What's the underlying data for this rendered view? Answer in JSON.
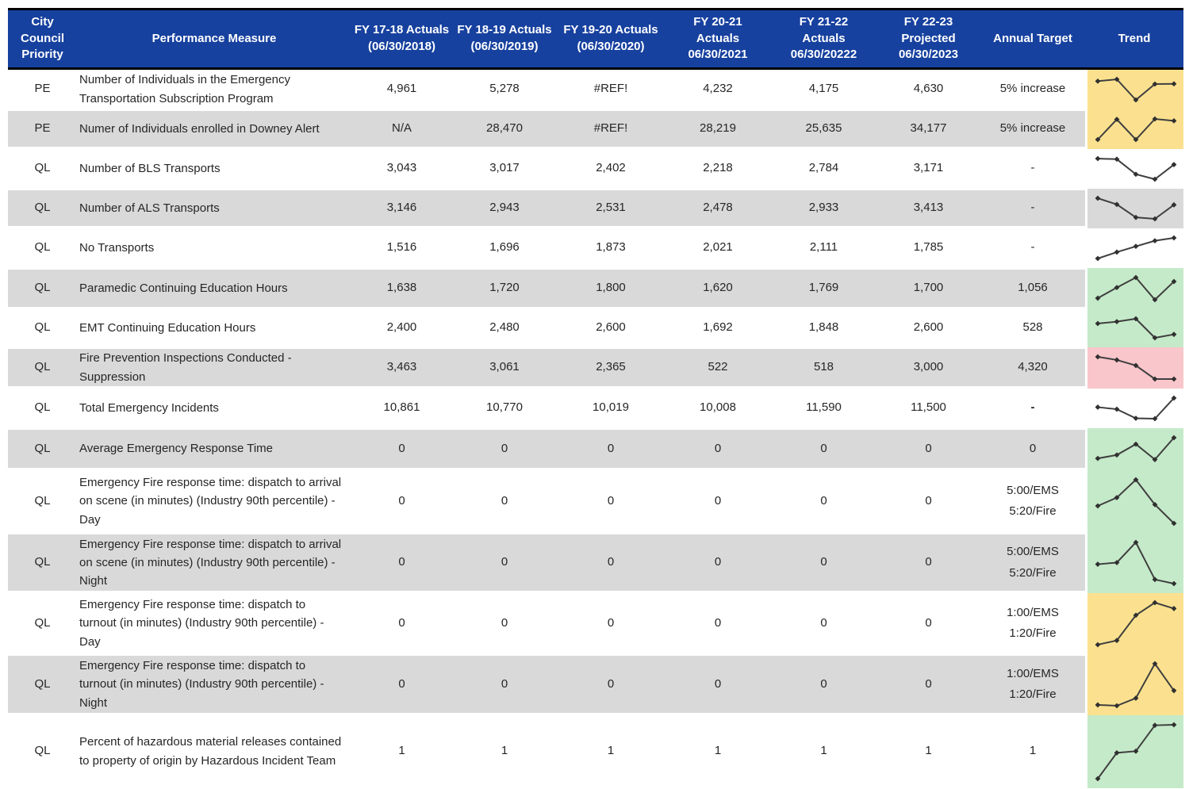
{
  "colors": {
    "header_bg": "#17419F",
    "header_text": "#FFFFFF",
    "row_alt": "#D9D9D9",
    "trend_yellow": "#FBE18F",
    "trend_green": "#C5EAC9",
    "trend_red": "#F9C6CB",
    "spark_line": "#3F3F3F",
    "spark_marker": "#303030",
    "border_black": "#000000"
  },
  "header": {
    "columns": [
      {
        "id": "priority",
        "label": "City\nCouncil\nPriority"
      },
      {
        "id": "measure",
        "label": "Performance Measure"
      },
      {
        "id": "fy1718",
        "label": "FY 17-18 Actuals\n(06/30/2018)"
      },
      {
        "id": "fy1819",
        "label": "FY 18-19 Actuals\n(06/30/2019)"
      },
      {
        "id": "fy1920",
        "label": "FY 19-20 Actuals\n(06/30/2020)"
      },
      {
        "id": "fy2021",
        "label": "FY 20-21\nActuals\n06/30/2021"
      },
      {
        "id": "fy2122",
        "label": "FY 21-22\nActuals\n06/30/20222"
      },
      {
        "id": "fy2223",
        "label": "FY 22-23\nProjected\n06/30/2023"
      },
      {
        "id": "target",
        "label": "Annual Target"
      },
      {
        "id": "trend",
        "label": "Trend"
      }
    ]
  },
  "rows": [
    {
      "priority": "PE",
      "measure": "Number of Individuals in the Emergency Transportation Subscription Program",
      "values": [
        "4,961",
        "5,278",
        "#REF!",
        "4,232",
        "4,175",
        "4,630"
      ],
      "target": "5% increase",
      "shade": "white",
      "trend": {
        "bg": "yellow",
        "points": [
          0.91,
          1,
          0,
          0.77,
          0.78
        ]
      }
    },
    {
      "priority": "PE",
      "measure": "Numer of Individuals enrolled in Downey Alert",
      "values": [
        "N/A",
        "28,470",
        "#REF!",
        "28,219",
        "25,635",
        "34,177"
      ],
      "target": "5% increase",
      "shade": "gray",
      "trend": {
        "bg": "yellow",
        "points": [
          0,
          0.98,
          0,
          1,
          0.91
        ]
      }
    },
    {
      "priority": "QL",
      "measure": "Number of BLS Transports",
      "values": [
        "3,043",
        "3,017",
        "2,402",
        "2,218",
        "2,784",
        "3,171"
      ],
      "target": "-",
      "shade": "white",
      "trend": {
        "bg": "row",
        "points": [
          1,
          0.97,
          0.24,
          0,
          0.71
        ]
      }
    },
    {
      "priority": "QL",
      "measure": "Number of ALS Transports",
      "values": [
        "3,146",
        "2,943",
        "2,531",
        "2,478",
        "2,933",
        "3,413"
      ],
      "target": "-",
      "shade": "gray",
      "trend": {
        "bg": "row",
        "points": [
          1,
          0.7,
          0.07,
          0,
          0.68
        ]
      }
    },
    {
      "priority": "QL",
      "measure": "No Transports",
      "values": [
        "1,516",
        "1,696",
        "1,873",
        "2,021",
        "2,111",
        "1,785"
      ],
      "target": "-",
      "shade": "white",
      "trend": {
        "bg": "row",
        "points": [
          0,
          0.31,
          0.59,
          0.86,
          1
        ]
      }
    },
    {
      "priority": "QL",
      "measure": "Paramedic Continuing Education Hours",
      "values": [
        "1,638",
        "1,720",
        "1,800",
        "1,620",
        "1,769",
        "1,700"
      ],
      "target": "1,056",
      "shade": "gray",
      "trend": {
        "bg": "green",
        "points": [
          0.07,
          0.55,
          1,
          0,
          0.82
        ]
      }
    },
    {
      "priority": "QL",
      "measure": "EMT Continuing Education Hours",
      "values": [
        "2,400",
        "2,480",
        "2,600",
        "1,692",
        "1,848",
        "2,600"
      ],
      "target": "528",
      "shade": "white",
      "trend": {
        "bg": "green",
        "points": [
          0.75,
          0.85,
          1,
          0,
          0.18
        ]
      }
    },
    {
      "priority": "QL",
      "measure": "Fire Prevention Inspections Conducted - Suppression",
      "values": [
        "3,463",
        "3,061",
        "2,365",
        "522",
        "518",
        "3,000"
      ],
      "target": "4,320",
      "shade": "gray",
      "trend": {
        "bg": "red",
        "points": [
          1,
          0.86,
          0.61,
          0,
          0
        ]
      }
    },
    {
      "priority": "QL",
      "measure": "Total Emergency Incidents",
      "values": [
        "10,861",
        "10,770",
        "10,019",
        "10,008",
        "11,590",
        "11,500"
      ],
      "target": "-",
      "target_bold": true,
      "shade": "white",
      "trend": {
        "bg": "row",
        "points": [
          0.56,
          0.46,
          0.02,
          0,
          1
        ]
      }
    },
    {
      "priority": "QL",
      "measure": "Average Emergency Response Time",
      "values": [
        "0",
        "0",
        "0",
        "0",
        "0",
        "0"
      ],
      "target": "0",
      "shade": "gray",
      "trend": {
        "bg": "green",
        "points": [
          0.1,
          0.25,
          0.72,
          0.05,
          1
        ]
      }
    },
    {
      "priority": "QL",
      "measure": "Emergency Fire response time: dispatch to arrival on scene (in minutes) (Industry 90th percentile) - Day",
      "values": [
        "0",
        "0",
        "0",
        "0",
        "0",
        "0"
      ],
      "target": "5:00/EMS\n5:20/Fire",
      "shade": "white",
      "trend": {
        "bg": "green",
        "points": [
          0.4,
          0.59,
          1,
          0.43,
          0
        ]
      }
    },
    {
      "priority": "QL",
      "measure": "Emergency Fire response time: dispatch to arrival on scene (in minutes) (Industry 90th percentile) - Night",
      "values": [
        "0",
        "0",
        "0",
        "0",
        "0",
        "0"
      ],
      "target": "5:00/EMS\n5:20/Fire",
      "shade": "gray",
      "trend": {
        "bg": "green",
        "points": [
          0.47,
          0.51,
          1,
          0.1,
          0
        ]
      }
    },
    {
      "priority": "QL",
      "measure": "Emergency Fire response time: dispatch to turnout (in minutes) (Industry 90th percentile) - Day",
      "values": [
        "0",
        "0",
        "0",
        "0",
        "0",
        "0"
      ],
      "target": "1:00/EMS\n1:20/Fire",
      "shade": "white",
      "trend": {
        "bg": "yellow",
        "points": [
          0,
          0.1,
          0.7,
          1,
          0.86
        ]
      }
    },
    {
      "priority": "QL",
      "measure": "Emergency Fire response time: dispatch to turnout (in minutes) (Industry 90th percentile) - Night",
      "values": [
        "0",
        "0",
        "0",
        "0",
        "0",
        "0"
      ],
      "target": "1:00/EMS\n1:20/Fire",
      "shade": "gray",
      "trend": {
        "bg": "yellow",
        "points": [
          0.02,
          0,
          0.18,
          1,
          0.36
        ]
      }
    },
    {
      "priority": "QL",
      "measure": "Percent of hazardous material releases contained to property of origin by Hazardous Incident Team",
      "values": [
        "1",
        "1",
        "1",
        "1",
        "1",
        "1"
      ],
      "target": "1",
      "shade": "white",
      "trend": {
        "bg": "green",
        "points": [
          0,
          0.48,
          0.51,
          0.99,
          1
        ]
      }
    }
  ]
}
